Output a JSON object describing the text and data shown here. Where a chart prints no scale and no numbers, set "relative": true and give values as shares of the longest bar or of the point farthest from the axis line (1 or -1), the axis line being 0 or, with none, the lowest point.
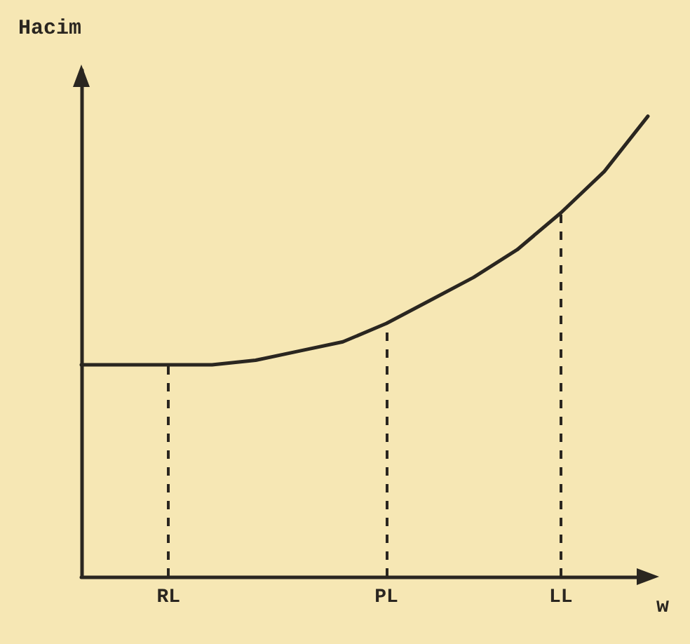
{
  "chart_data": {
    "type": "line",
    "ylabel": "Hacim",
    "xlabel": "w",
    "relative": true,
    "categories": [
      null,
      null,
      "RL",
      null,
      null,
      null,
      null,
      "PL",
      null,
      null,
      null,
      "LL",
      null,
      null
    ],
    "series": [
      {
        "color": "#2a2620",
        "values": [
          0.46,
          0.46,
          0.46,
          0.46,
          0.47,
          0.49,
          0.51,
          0.55,
          0.6,
          0.65,
          0.71,
          0.79,
          0.88,
          1
        ]
      }
    ],
    "ref_lines": [
      {
        "axis": "x",
        "value": "RL",
        "line_style": "dashed",
        "color": "#2a2620"
      },
      {
        "axis": "x",
        "value": "PL",
        "line_style": "dashed",
        "color": "#2a2620"
      },
      {
        "axis": "x",
        "value": "LL",
        "line_style": "dashed",
        "color": "#2a2620"
      }
    ],
    "marker": "none",
    "line_style": "solid",
    "grid": false
  }
}
